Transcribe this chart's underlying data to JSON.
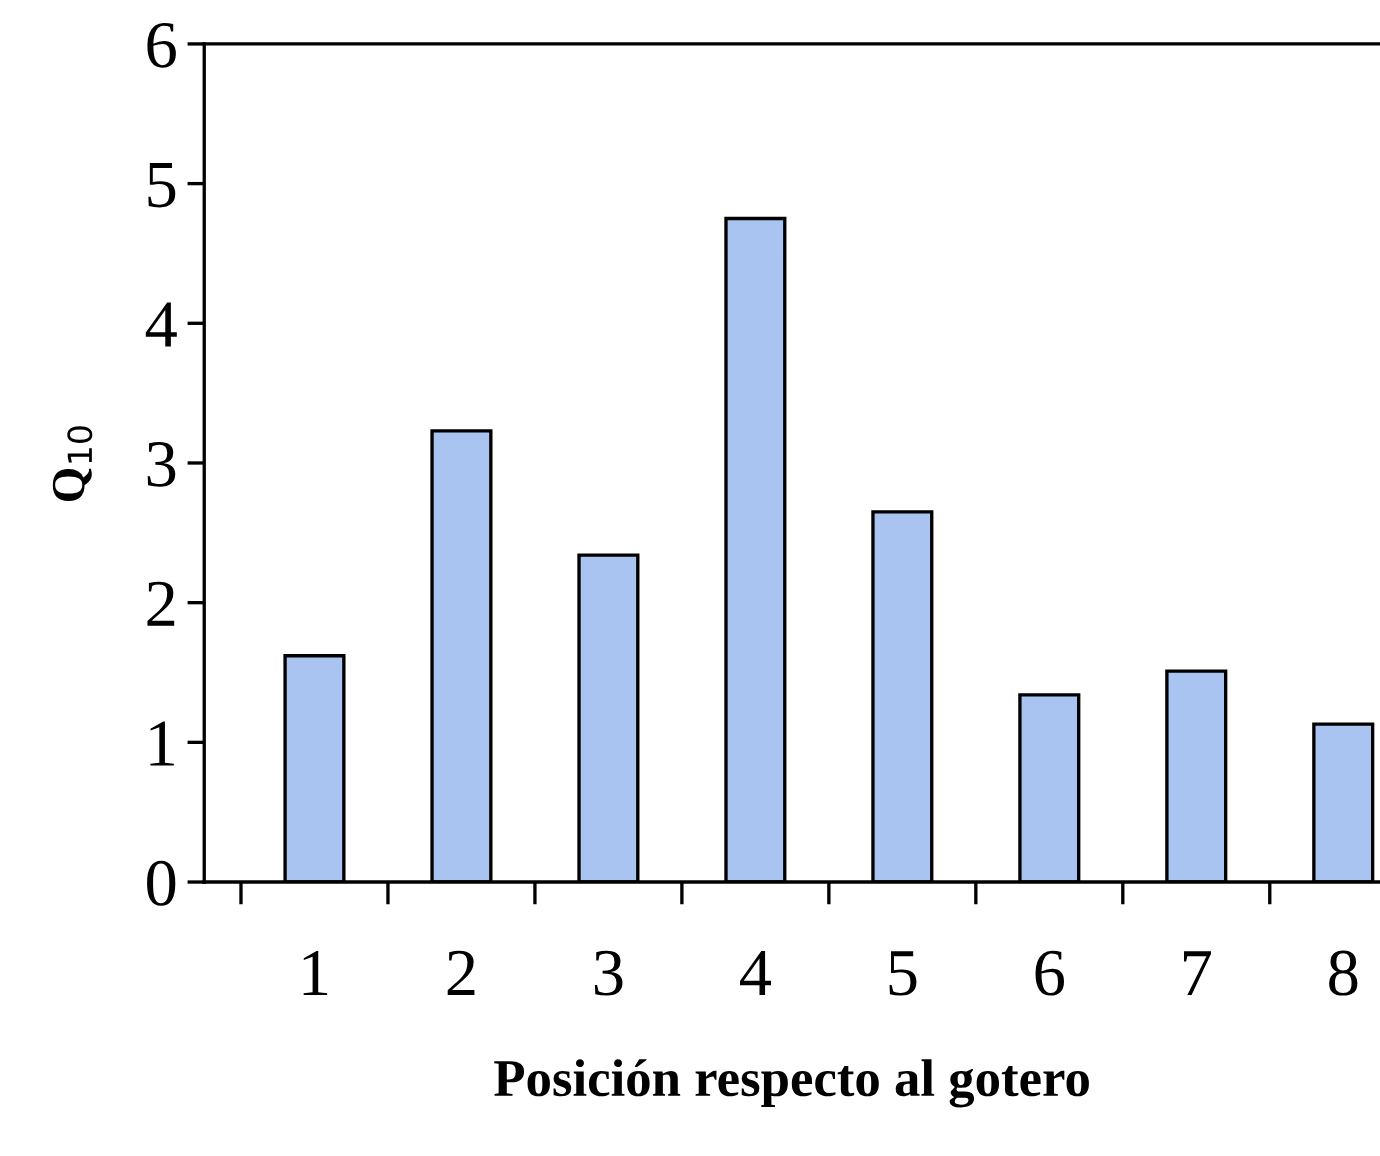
{
  "chart_data": {
    "type": "bar",
    "xlabel": "Posición respecto al gotero",
    "ylabel": "Q$_{10}$",
    "categories": [
      "1",
      "2",
      "3",
      "4",
      "5",
      "6",
      "7",
      "8"
    ],
    "values": [
      1.62,
      3.23,
      2.34,
      4.75,
      2.65,
      1.34,
      1.51,
      1.13
    ],
    "color": "#a9c4f0",
    "ylim": [
      0,
      6
    ],
    "yticks": [
      0,
      1,
      2,
      3,
      4,
      5,
      6
    ],
    "grid": false,
    "legend": false
  }
}
